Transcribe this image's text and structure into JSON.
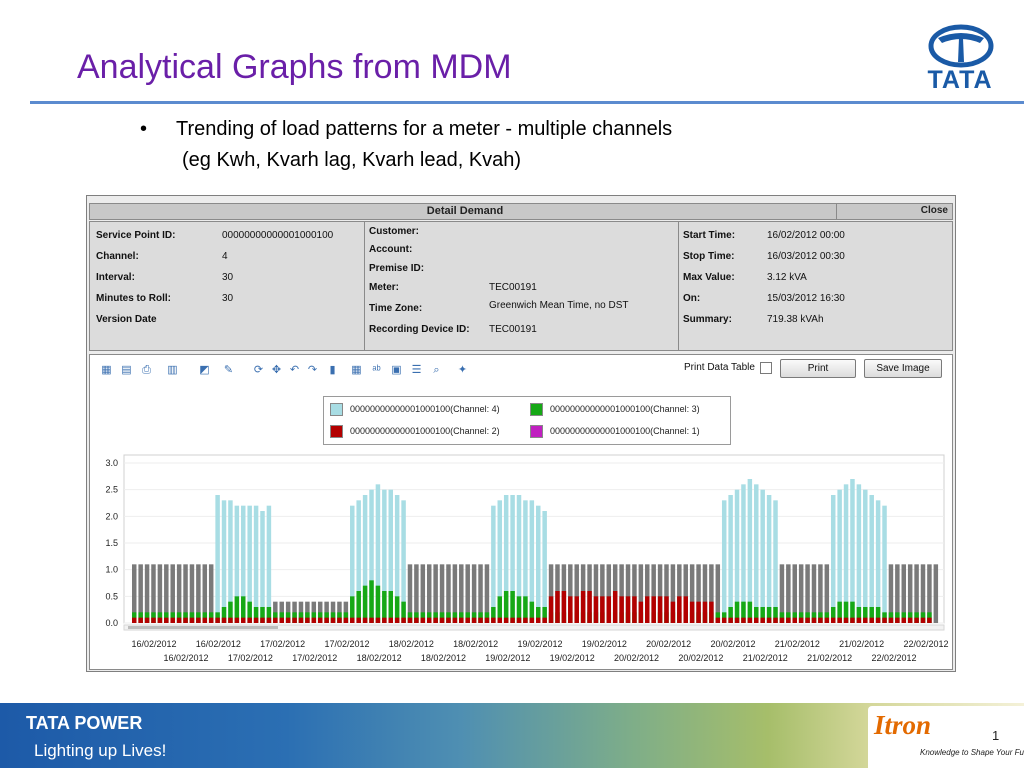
{
  "slide": {
    "title": "Analytical Graphs from MDM",
    "logo_word": "TATA",
    "bullet": {
      "symbol": "•",
      "line1": "Trending of load patterns for a meter - multiple channels",
      "line2": "(eg Kwh, Kvarh lag, Kvarh lead, Kvah)"
    }
  },
  "window": {
    "title": "Detail Demand",
    "close_label": "Close",
    "info": {
      "col1": [
        {
          "label": "Service Point ID:",
          "value": "00000000000001000100"
        },
        {
          "label": "Channel:",
          "value": "4"
        },
        {
          "label": "Interval:",
          "value": "30"
        },
        {
          "label": "Minutes to Roll:",
          "value": "30"
        },
        {
          "label": "Version Date",
          "value": ""
        }
      ],
      "col2": [
        {
          "label": "Customer:",
          "value": ""
        },
        {
          "label": "Account:",
          "value": ""
        },
        {
          "label": "Premise ID:",
          "value": ""
        },
        {
          "label": "Meter:",
          "value": "TEC00191"
        },
        {
          "label": "Time Zone:",
          "value": "Greenwich Mean Time, no DST"
        },
        {
          "label": "Recording Device ID:",
          "value": "TEC00191"
        }
      ],
      "col3": [
        {
          "label": "Start Time:",
          "value": "16/02/2012 00:00"
        },
        {
          "label": "Stop Time:",
          "value": "16/03/2012 00:30"
        },
        {
          "label": "Max Value:",
          "value": "3.12 kVA"
        },
        {
          "label": "On:",
          "value": "15/03/2012 16:30"
        },
        {
          "label": "Summary:",
          "value": "719.38 kVAh"
        }
      ]
    },
    "toolbar": {
      "print_table_label": "Print Data Table",
      "print_label": "Print",
      "save_image_label": "Save Image"
    }
  },
  "chart_data": {
    "type": "bar",
    "title": "",
    "xlabel": "",
    "ylabel": "",
    "ylim": [
      0,
      3.0
    ],
    "y_ticks": [
      "0.0",
      "0.5",
      "1.0",
      "1.5",
      "2.0",
      "2.5",
      "3.0"
    ],
    "x_ticks_row1": [
      "16/02/2012",
      "16/02/2012",
      "17/02/2012",
      "17/02/2012",
      "18/02/2012",
      "18/02/2012",
      "19/02/2012",
      "19/02/2012",
      "20/02/2012",
      "20/02/2012",
      "21/02/2012",
      "21/02/2012",
      "22/02/2012"
    ],
    "x_ticks_row2": [
      "16/02/2012",
      "17/02/2012",
      "17/02/2012",
      "18/02/2012",
      "18/02/2012",
      "19/02/2012",
      "19/02/2012",
      "20/02/2012",
      "20/02/2012",
      "21/02/2012",
      "21/02/2012",
      "22/02/2012"
    ],
    "legend_placement": "top-center",
    "series": [
      {
        "name": "00000000000001000100(Channel: 4)",
        "color": "#a8dde4",
        "values": [
          1.1,
          1.1,
          1.1,
          1.1,
          1.1,
          1.1,
          1.1,
          1.1,
          1.1,
          1.1,
          1.1,
          1.1,
          1.1,
          2.4,
          2.3,
          2.3,
          2.2,
          2.2,
          2.2,
          2.2,
          2.1,
          2.2,
          0.4,
          0.4,
          0.4,
          0.4,
          0.4,
          0.4,
          0.4,
          0.4,
          0.4,
          0.4,
          0.4,
          0.4,
          2.2,
          2.3,
          2.4,
          2.5,
          2.6,
          2.5,
          2.5,
          2.4,
          2.3,
          1.1,
          1.1,
          1.1,
          1.1,
          1.1,
          1.1,
          1.1,
          1.1,
          1.1,
          1.1,
          1.1,
          1.1,
          1.1,
          2.2,
          2.3,
          2.4,
          2.4,
          2.4,
          2.3,
          2.3,
          2.2,
          2.1,
          1.1,
          1.1,
          1.1,
          1.1,
          1.1,
          1.1,
          1.1,
          1.1,
          1.1,
          1.1,
          1.1,
          1.1,
          1.1,
          1.1,
          1.1,
          1.1,
          1.1,
          1.1,
          1.1,
          1.1,
          1.1,
          1.1,
          1.1,
          1.1,
          1.1,
          1.1,
          1.1,
          2.3,
          2.4,
          2.5,
          2.6,
          2.7,
          2.6,
          2.5,
          2.4,
          2.3,
          1.1,
          1.1,
          1.1,
          1.1,
          1.1,
          1.1,
          1.1,
          1.1,
          2.4,
          2.5,
          2.6,
          2.7,
          2.6,
          2.5,
          2.4,
          2.3,
          2.2,
          1.1,
          1.1,
          1.1,
          1.1,
          1.1,
          1.1,
          1.1,
          1.1
        ]
      },
      {
        "name": "00000000000001000100(Channel: 3)",
        "color": "#16a816",
        "values": [
          0.2,
          0.2,
          0.2,
          0.2,
          0.2,
          0.2,
          0.2,
          0.2,
          0.2,
          0.2,
          0.2,
          0.2,
          0.2,
          0.2,
          0.3,
          0.4,
          0.5,
          0.5,
          0.4,
          0.3,
          0.3,
          0.3,
          0.2,
          0.2,
          0.2,
          0.2,
          0.2,
          0.2,
          0.2,
          0.2,
          0.2,
          0.2,
          0.2,
          0.2,
          0.5,
          0.6,
          0.7,
          0.8,
          0.7,
          0.6,
          0.6,
          0.5,
          0.4,
          0.2,
          0.2,
          0.2,
          0.2,
          0.2,
          0.2,
          0.2,
          0.2,
          0.2,
          0.2,
          0.2,
          0.2,
          0.2,
          0.3,
          0.5,
          0.6,
          0.6,
          0.5,
          0.5,
          0.4,
          0.3,
          0.3,
          0.2,
          0.2,
          0.2,
          0.2,
          0.2,
          0.2,
          0.2,
          0.2,
          0.2,
          0.2,
          0.2,
          0.2,
          0.2,
          0.2,
          0.2,
          0.2,
          0.2,
          0.2,
          0.2,
          0.2,
          0.2,
          0.2,
          0.2,
          0.2,
          0.2,
          0.2,
          0.2,
          0.2,
          0.3,
          0.4,
          0.4,
          0.4,
          0.3,
          0.3,
          0.3,
          0.3,
          0.2,
          0.2,
          0.2,
          0.2,
          0.2,
          0.2,
          0.2,
          0.2,
          0.3,
          0.4,
          0.4,
          0.4,
          0.3,
          0.3,
          0.3,
          0.3,
          0.2,
          0.2,
          0.2,
          0.2,
          0.2,
          0.2,
          0.2,
          0.2
        ]
      },
      {
        "name": "00000000000001000100(Channel: 2)",
        "color": "#b30000",
        "values": [
          0.1,
          0.1,
          0.1,
          0.1,
          0.1,
          0.1,
          0.1,
          0.1,
          0.1,
          0.1,
          0.1,
          0.1,
          0.1,
          0.1,
          0.1,
          0.1,
          0.1,
          0.1,
          0.1,
          0.1,
          0.1,
          0.1,
          0.1,
          0.1,
          0.1,
          0.1,
          0.1,
          0.1,
          0.1,
          0.1,
          0.1,
          0.1,
          0.1,
          0.1,
          0.1,
          0.1,
          0.1,
          0.1,
          0.1,
          0.1,
          0.1,
          0.1,
          0.1,
          0.1,
          0.1,
          0.1,
          0.1,
          0.1,
          0.1,
          0.1,
          0.1,
          0.1,
          0.1,
          0.1,
          0.1,
          0.1,
          0.1,
          0.1,
          0.1,
          0.1,
          0.1,
          0.1,
          0.1,
          0.1,
          0.1,
          0.5,
          0.6,
          0.6,
          0.5,
          0.5,
          0.6,
          0.6,
          0.5,
          0.5,
          0.5,
          0.6,
          0.5,
          0.5,
          0.5,
          0.4,
          0.5,
          0.5,
          0.5,
          0.5,
          0.4,
          0.5,
          0.5,
          0.4,
          0.4,
          0.4,
          0.4,
          0.1,
          0.1,
          0.1,
          0.1,
          0.1,
          0.1,
          0.1,
          0.1,
          0.1,
          0.1,
          0.1,
          0.1,
          0.1,
          0.1,
          0.1,
          0.1,
          0.1,
          0.1,
          0.1,
          0.1,
          0.1,
          0.1,
          0.1,
          0.1,
          0.1,
          0.1,
          0.1,
          0.1,
          0.1,
          0.1,
          0.1,
          0.1,
          0.1,
          0.1
        ]
      },
      {
        "name": "00000000000001000100(Channel: 1)",
        "color": "#c020c0",
        "values": []
      }
    ]
  }
}
